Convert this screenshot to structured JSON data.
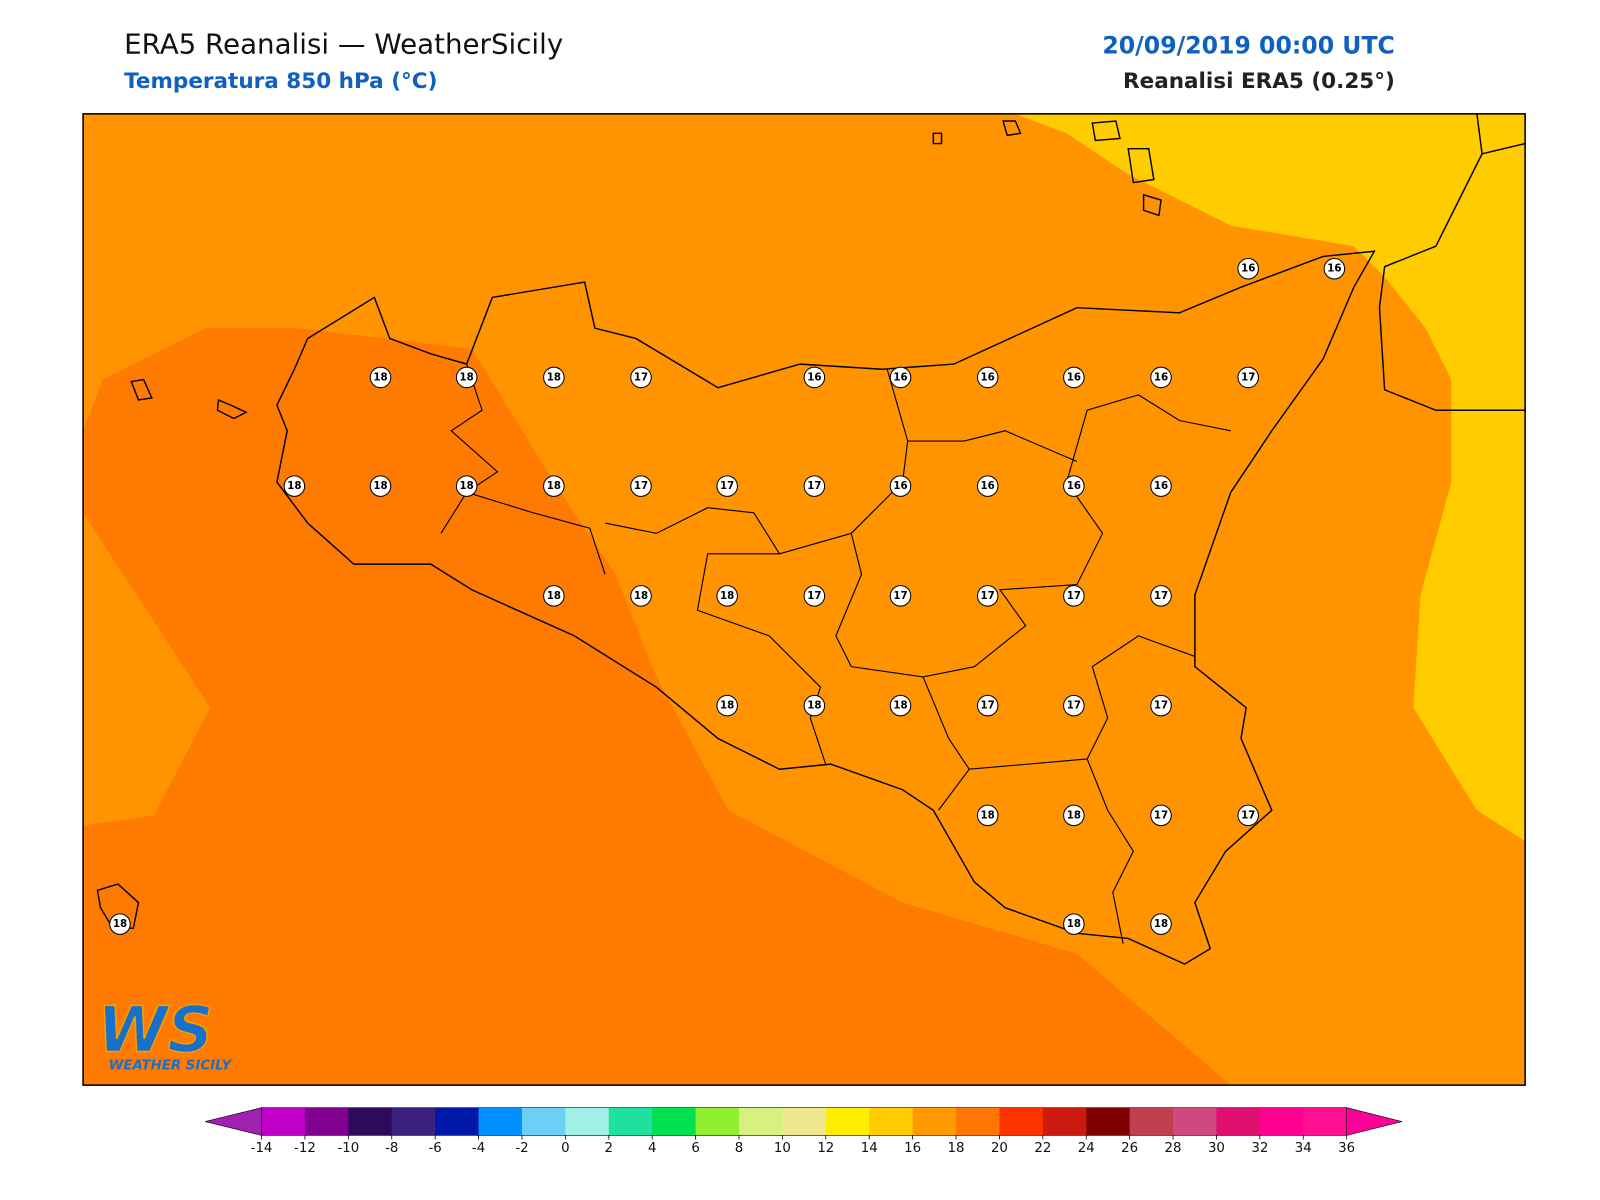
{
  "header": {
    "title": "ERA5 Reanalisi — WeatherSicily",
    "subtitle": "Temperatura 850 hPa (°C)",
    "date": "20/09/2019 00:00 UTC",
    "source": "Reanalisi ERA5 (0.25°)"
  },
  "map": {
    "station_values": [
      16,
      16,
      18,
      18,
      18,
      17,
      16,
      16,
      16,
      16,
      16,
      17,
      18,
      18,
      18,
      18,
      17,
      17,
      17,
      16,
      16,
      16,
      16,
      18,
      18,
      18,
      17,
      17,
      17,
      17,
      17,
      18,
      18,
      18,
      17,
      17,
      17,
      18,
      18,
      17,
      17,
      18,
      18,
      18
    ]
  },
  "colorbar": {
    "ticks": [
      -14,
      -12,
      -10,
      -8,
      -6,
      -4,
      -2,
      0,
      2,
      4,
      6,
      8,
      10,
      12,
      14,
      16,
      18,
      20,
      22,
      24,
      26,
      28,
      30,
      32,
      34,
      36
    ],
    "under": "#a020b0",
    "over": "#ff0099",
    "colors": [
      "#c000c8",
      "#800090",
      "#2e0a5a",
      "#3c2080",
      "#0018a8",
      "#0090ff",
      "#6ccff6",
      "#a0f0e8",
      "#20e0a0",
      "#00e050",
      "#90f030",
      "#d8f080",
      "#f0e890",
      "#ffee00",
      "#ffcc00",
      "#ff9900",
      "#ff7700",
      "#ff3300",
      "#cc1a10",
      "#800000",
      "#c04050",
      "#d04880",
      "#e01070",
      "#ff0090",
      "#ff1090"
    ]
  },
  "logo": {
    "mark": "WS",
    "text": "WEATHER SICILY"
  }
}
